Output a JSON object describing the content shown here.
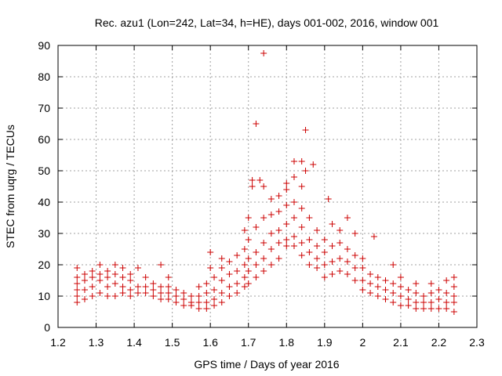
{
  "chart_data": {
    "type": "scatter",
    "title": "Rec. azu1 (Lon=242, Lat=34, h=HE), days 001-002, 2016, window 001",
    "xlabel": "GPS time / Days of year 2016",
    "ylabel": "STEC from uqrg / TECUs",
    "xlim": [
      1.2,
      2.3
    ],
    "ylim": [
      0,
      90
    ],
    "xticks": [
      "1.2",
      "1.3",
      "1.4",
      "1.5",
      "1.6",
      "1.7",
      "1.8",
      "1.9",
      "2",
      "2.1",
      "2.2",
      "2.3"
    ],
    "yticks": [
      "0",
      "10",
      "20",
      "30",
      "40",
      "50",
      "60",
      "70",
      "80",
      "90"
    ],
    "grid": true,
    "marker": "plus",
    "color": "#cc0000",
    "series": [
      {
        "points": [
          [
            1.25,
            8
          ],
          [
            1.25,
            10
          ],
          [
            1.25,
            12
          ],
          [
            1.25,
            14
          ],
          [
            1.25,
            16
          ],
          [
            1.25,
            19
          ],
          [
            1.27,
            9
          ],
          [
            1.27,
            12
          ],
          [
            1.27,
            15
          ],
          [
            1.27,
            17
          ],
          [
            1.29,
            10
          ],
          [
            1.29,
            13
          ],
          [
            1.29,
            16
          ],
          [
            1.29,
            18
          ],
          [
            1.31,
            11
          ],
          [
            1.31,
            15
          ],
          [
            1.31,
            17
          ],
          [
            1.31,
            20
          ],
          [
            1.33,
            10
          ],
          [
            1.33,
            13
          ],
          [
            1.33,
            16
          ],
          [
            1.33,
            18
          ],
          [
            1.35,
            10
          ],
          [
            1.35,
            14
          ],
          [
            1.35,
            17
          ],
          [
            1.35,
            20
          ],
          [
            1.37,
            11
          ],
          [
            1.37,
            13
          ],
          [
            1.37,
            16
          ],
          [
            1.37,
            19
          ],
          [
            1.39,
            10
          ],
          [
            1.39,
            12
          ],
          [
            1.39,
            15
          ],
          [
            1.39,
            17
          ],
          [
            1.41,
            11
          ],
          [
            1.41,
            13
          ],
          [
            1.41,
            19
          ],
          [
            1.43,
            11
          ],
          [
            1.43,
            13
          ],
          [
            1.43,
            16
          ],
          [
            1.45,
            10
          ],
          [
            1.45,
            12
          ],
          [
            1.45,
            14
          ],
          [
            1.47,
            9
          ],
          [
            1.47,
            11
          ],
          [
            1.47,
            13
          ],
          [
            1.47,
            20
          ],
          [
            1.49,
            9
          ],
          [
            1.49,
            11
          ],
          [
            1.49,
            13
          ],
          [
            1.49,
            16
          ],
          [
            1.51,
            8
          ],
          [
            1.51,
            10
          ],
          [
            1.51,
            12
          ],
          [
            1.53,
            7
          ],
          [
            1.53,
            9
          ],
          [
            1.53,
            11
          ],
          [
            1.55,
            7
          ],
          [
            1.55,
            8
          ],
          [
            1.55,
            10
          ],
          [
            1.57,
            6
          ],
          [
            1.57,
            8
          ],
          [
            1.57,
            10
          ],
          [
            1.57,
            13
          ],
          [
            1.59,
            6
          ],
          [
            1.59,
            8
          ],
          [
            1.59,
            11
          ],
          [
            1.59,
            14
          ],
          [
            1.6,
            24
          ],
          [
            1.6,
            19
          ],
          [
            1.61,
            7
          ],
          [
            1.61,
            9
          ],
          [
            1.61,
            12
          ],
          [
            1.61,
            16
          ],
          [
            1.63,
            8
          ],
          [
            1.63,
            11
          ],
          [
            1.63,
            15
          ],
          [
            1.63,
            19
          ],
          [
            1.63,
            22
          ],
          [
            1.65,
            10
          ],
          [
            1.65,
            13
          ],
          [
            1.65,
            17
          ],
          [
            1.65,
            21
          ],
          [
            1.67,
            11
          ],
          [
            1.67,
            14
          ],
          [
            1.67,
            18
          ],
          [
            1.67,
            23
          ],
          [
            1.69,
            13
          ],
          [
            1.69,
            16
          ],
          [
            1.69,
            20
          ],
          [
            1.69,
            25
          ],
          [
            1.69,
            31
          ],
          [
            1.7,
            14
          ],
          [
            1.7,
            18
          ],
          [
            1.7,
            22
          ],
          [
            1.7,
            28
          ],
          [
            1.7,
            35
          ],
          [
            1.71,
            45
          ],
          [
            1.71,
            47
          ],
          [
            1.72,
            16
          ],
          [
            1.72,
            20
          ],
          [
            1.72,
            24
          ],
          [
            1.72,
            32
          ],
          [
            1.72,
            65
          ],
          [
            1.73,
            47
          ],
          [
            1.74,
            18
          ],
          [
            1.74,
            22
          ],
          [
            1.74,
            27
          ],
          [
            1.74,
            35
          ],
          [
            1.74,
            45
          ],
          [
            1.74,
            87.5
          ],
          [
            1.76,
            20
          ],
          [
            1.76,
            25
          ],
          [
            1.76,
            30
          ],
          [
            1.76,
            36
          ],
          [
            1.76,
            41
          ],
          [
            1.78,
            22
          ],
          [
            1.78,
            27
          ],
          [
            1.78,
            31
          ],
          [
            1.78,
            37
          ],
          [
            1.78,
            42
          ],
          [
            1.8,
            26
          ],
          [
            1.8,
            28
          ],
          [
            1.8,
            33
          ],
          [
            1.8,
            39
          ],
          [
            1.8,
            44
          ],
          [
            1.8,
            46
          ],
          [
            1.82,
            26
          ],
          [
            1.82,
            29
          ],
          [
            1.82,
            35
          ],
          [
            1.82,
            40
          ],
          [
            1.82,
            48
          ],
          [
            1.82,
            53
          ],
          [
            1.84,
            23
          ],
          [
            1.84,
            27
          ],
          [
            1.84,
            32
          ],
          [
            1.84,
            38
          ],
          [
            1.84,
            45
          ],
          [
            1.84,
            53
          ],
          [
            1.85,
            50
          ],
          [
            1.85,
            63
          ],
          [
            1.87,
            52
          ],
          [
            1.86,
            20
          ],
          [
            1.86,
            24
          ],
          [
            1.86,
            28
          ],
          [
            1.86,
            35
          ],
          [
            1.88,
            19
          ],
          [
            1.88,
            22
          ],
          [
            1.88,
            26
          ],
          [
            1.88,
            31
          ],
          [
            1.9,
            16
          ],
          [
            1.9,
            20
          ],
          [
            1.9,
            24
          ],
          [
            1.9,
            28
          ],
          [
            1.91,
            41
          ],
          [
            1.92,
            17
          ],
          [
            1.92,
            21
          ],
          [
            1.92,
            26
          ],
          [
            1.92,
            33
          ],
          [
            1.94,
            18
          ],
          [
            1.94,
            22
          ],
          [
            1.94,
            27
          ],
          [
            1.94,
            31
          ],
          [
            1.96,
            17
          ],
          [
            1.96,
            21
          ],
          [
            1.96,
            25
          ],
          [
            1.96,
            35
          ],
          [
            1.98,
            15
          ],
          [
            1.98,
            19
          ],
          [
            1.98,
            23
          ],
          [
            1.98,
            30
          ],
          [
            2.0,
            12
          ],
          [
            2.0,
            15
          ],
          [
            2.0,
            19
          ],
          [
            2.0,
            22
          ],
          [
            2.02,
            11
          ],
          [
            2.02,
            14
          ],
          [
            2.02,
            17
          ],
          [
            2.03,
            29
          ],
          [
            2.04,
            10
          ],
          [
            2.04,
            13
          ],
          [
            2.04,
            16
          ],
          [
            2.06,
            9
          ],
          [
            2.06,
            12
          ],
          [
            2.06,
            15
          ],
          [
            2.08,
            8
          ],
          [
            2.08,
            11
          ],
          [
            2.08,
            14
          ],
          [
            2.08,
            20
          ],
          [
            2.1,
            7
          ],
          [
            2.1,
            10
          ],
          [
            2.1,
            13
          ],
          [
            2.1,
            16
          ],
          [
            2.12,
            7
          ],
          [
            2.12,
            9
          ],
          [
            2.12,
            12
          ],
          [
            2.14,
            6
          ],
          [
            2.14,
            8
          ],
          [
            2.14,
            11
          ],
          [
            2.14,
            14
          ],
          [
            2.16,
            6
          ],
          [
            2.16,
            8
          ],
          [
            2.16,
            10
          ],
          [
            2.18,
            6
          ],
          [
            2.18,
            8
          ],
          [
            2.18,
            11
          ],
          [
            2.18,
            14
          ],
          [
            2.2,
            6
          ],
          [
            2.2,
            9
          ],
          [
            2.2,
            12
          ],
          [
            2.22,
            6
          ],
          [
            2.22,
            8
          ],
          [
            2.22,
            11
          ],
          [
            2.22,
            15
          ],
          [
            2.24,
            5
          ],
          [
            2.24,
            8
          ],
          [
            2.24,
            10
          ],
          [
            2.24,
            13
          ],
          [
            2.24,
            16
          ]
        ]
      }
    ]
  }
}
